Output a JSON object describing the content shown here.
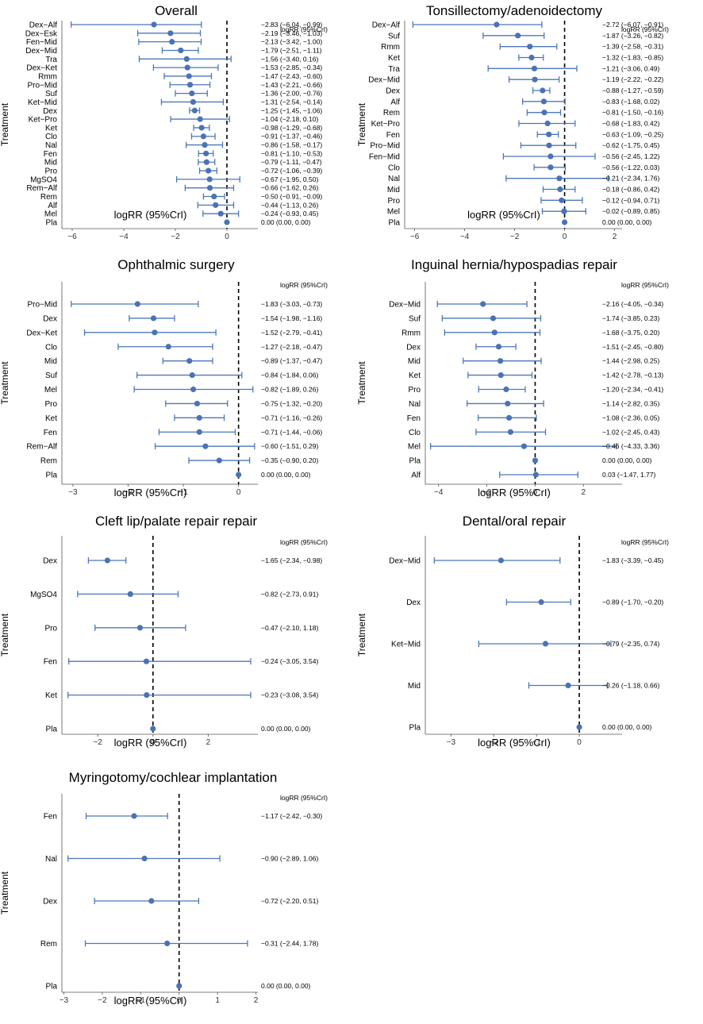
{
  "colors": {
    "interval": "#4c78b8",
    "point": "#4a73b5",
    "reference": "#000000"
  },
  "chart_data": [
    {
      "type": "forest",
      "title": "Overall",
      "xlabel": "logRR (95%CrI)",
      "ylabel": "Treatment",
      "est_header": "logRR (95%CrI)",
      "xlim": [
        -6.4,
        1.2
      ],
      "xticks": [
        -6,
        -4,
        -2,
        0
      ],
      "rows": [
        {
          "label": "Dex−Alf",
          "est": -2.83,
          "lo": -6.04,
          "hi": -0.99,
          "text": "−2.83 (−6.04, −0.99)"
        },
        {
          "label": "Dex−Esk",
          "est": -2.19,
          "lo": -3.46,
          "hi": -1.03,
          "text": "−2.19 (−3.46, −1.03)"
        },
        {
          "label": "Fen−Mid",
          "est": -2.13,
          "lo": -3.42,
          "hi": -1.0,
          "text": "−2.13 (−3.42, −1.00)"
        },
        {
          "label": "Dex−Mid",
          "est": -1.79,
          "lo": -2.51,
          "hi": -1.11,
          "text": "−1.79 (−2.51, −1.11)"
        },
        {
          "label": "Tra",
          "est": -1.56,
          "lo": -3.4,
          "hi": 0.16,
          "text": "−1.56 (−3.40, 0.16)"
        },
        {
          "label": "Dex−Ket",
          "est": -1.53,
          "lo": -2.85,
          "hi": -0.34,
          "text": "−1.53 (−2.85, −0.34)"
        },
        {
          "label": "Rmm",
          "est": -1.47,
          "lo": -2.43,
          "hi": -0.6,
          "text": "−1.47 (−2.43, −0.60)"
        },
        {
          "label": "Pro−Mid",
          "est": -1.43,
          "lo": -2.21,
          "hi": -0.66,
          "text": "−1.43 (−2.21, −0.66)"
        },
        {
          "label": "Suf",
          "est": -1.36,
          "lo": -2.0,
          "hi": -0.76,
          "text": "−1.36 (−2.00, −0.76)"
        },
        {
          "label": "Ket−Mid",
          "est": -1.31,
          "lo": -2.54,
          "hi": -0.14,
          "text": "−1.31 (−2.54, −0.14)"
        },
        {
          "label": "Dex",
          "est": -1.25,
          "lo": -1.45,
          "hi": -1.06,
          "text": "−1.25 (−1.45, −1.06)"
        },
        {
          "label": "Ket−Pro",
          "est": -1.04,
          "lo": -2.18,
          "hi": 0.1,
          "text": "−1.04 (−2.18, 0.10)"
        },
        {
          "label": "Ket",
          "est": -0.98,
          "lo": -1.29,
          "hi": -0.68,
          "text": "−0.98 (−1.29, −0.68)"
        },
        {
          "label": "Clo",
          "est": -0.91,
          "lo": -1.37,
          "hi": -0.46,
          "text": "−0.91 (−1.37, −0.46)"
        },
        {
          "label": "Nal",
          "est": -0.86,
          "lo": -1.58,
          "hi": -0.17,
          "text": "−0.86 (−1.58, −0.17)"
        },
        {
          "label": "Fen",
          "est": -0.81,
          "lo": -1.1,
          "hi": -0.53,
          "text": "−0.81 (−1.10, −0.53)"
        },
        {
          "label": "Mid",
          "est": -0.79,
          "lo": -1.11,
          "hi": -0.47,
          "text": "−0.79 (−1.11, −0.47)"
        },
        {
          "label": "Pro",
          "est": -0.72,
          "lo": -1.06,
          "hi": -0.39,
          "text": "−0.72 (−1.06, −0.39)"
        },
        {
          "label": "MgSO4",
          "est": -0.67,
          "lo": -1.95,
          "hi": 0.5,
          "text": "−0.67 (−1.95, 0.50)"
        },
        {
          "label": "Rem−Alf",
          "est": -0.66,
          "lo": -1.62,
          "hi": 0.26,
          "text": "−0.66 (−1.62, 0.26)"
        },
        {
          "label": "Rem",
          "est": -0.5,
          "lo": -0.91,
          "hi": -0.09,
          "text": "−0.50 (−0.91, −0.09)"
        },
        {
          "label": "Alf",
          "est": -0.44,
          "lo": -1.13,
          "hi": 0.26,
          "text": "−0.44 (−1.13, 0.26)"
        },
        {
          "label": "Mel",
          "est": -0.24,
          "lo": -0.93,
          "hi": 0.45,
          "text": "−0.24 (−0.93, 0.45)"
        },
        {
          "label": "Pla",
          "est": 0.0,
          "lo": 0.0,
          "hi": 0.0,
          "text": "0.00 (0.00, 0.00)"
        }
      ]
    },
    {
      "type": "forest",
      "title": "Tonsillectomy/adenoidectomy",
      "xlabel": "logRR (95%CrI)",
      "ylabel": "Treatment",
      "est_header": "logRR (95%CrI)",
      "xlim": [
        -6.4,
        2.3
      ],
      "xticks": [
        -6,
        -4,
        -2,
        0,
        2
      ],
      "rows": [
        {
          "label": "Dex−Alf",
          "est": -2.72,
          "lo": -6.07,
          "hi": -0.91,
          "text": "−2.72 (−6.07, −0.91)"
        },
        {
          "label": "Suf",
          "est": -1.87,
          "lo": -3.26,
          "hi": -0.82,
          "text": "−1.87 (−3.26, −0.82)"
        },
        {
          "label": "Rmm",
          "est": -1.39,
          "lo": -2.58,
          "hi": -0.31,
          "text": "−1.39 (−2.58, −0.31)"
        },
        {
          "label": "Ket",
          "est": -1.32,
          "lo": -1.83,
          "hi": -0.85,
          "text": "−1.32 (−1.83, −0.85)"
        },
        {
          "label": "Tra",
          "est": -1.21,
          "lo": -3.06,
          "hi": 0.49,
          "text": "−1.21 (−3.06, 0.49)"
        },
        {
          "label": "Dex−Mid",
          "est": -1.19,
          "lo": -2.22,
          "hi": -0.22,
          "text": "−1.19 (−2.22, −0.22)"
        },
        {
          "label": "Dex",
          "est": -0.88,
          "lo": -1.27,
          "hi": -0.59,
          "text": "−0.88 (−1.27, −0.59)"
        },
        {
          "label": "Alf",
          "est": -0.83,
          "lo": -1.68,
          "hi": 0.02,
          "text": "−0.83 (−1.68, 0.02)"
        },
        {
          "label": "Rem",
          "est": -0.81,
          "lo": -1.5,
          "hi": -0.16,
          "text": "−0.81 (−1.50, −0.16)"
        },
        {
          "label": "Ket−Pro",
          "est": -0.68,
          "lo": -1.83,
          "hi": 0.42,
          "text": "−0.68 (−1.83, 0.42)"
        },
        {
          "label": "Fen",
          "est": -0.63,
          "lo": -1.09,
          "hi": -0.25,
          "text": "−0.63 (−1.09, −0.25)"
        },
        {
          "label": "Pro−Mid",
          "est": -0.62,
          "lo": -1.75,
          "hi": 0.45,
          "text": "−0.62 (−1.75, 0.45)"
        },
        {
          "label": "Fen−Mid",
          "est": -0.56,
          "lo": -2.45,
          "hi": 1.22,
          "text": "−0.56 (−2.45, 1.22)"
        },
        {
          "label": "Clo",
          "est": -0.56,
          "lo": -1.22,
          "hi": 0.03,
          "text": "−0.56 (−1.22, 0.03)"
        },
        {
          "label": "Nal",
          "est": -0.21,
          "lo": -2.34,
          "hi": 1.76,
          "text": "−0.21 (−2.34, 1.76)"
        },
        {
          "label": "Mid",
          "est": -0.18,
          "lo": -0.86,
          "hi": 0.42,
          "text": "−0.18 (−0.86, 0.42)"
        },
        {
          "label": "Pro",
          "est": -0.12,
          "lo": -0.94,
          "hi": 0.71,
          "text": "−0.12 (−0.94, 0.71)"
        },
        {
          "label": "Mel",
          "est": -0.02,
          "lo": -0.89,
          "hi": 0.85,
          "text": "−0.02 (−0.89, 0.85)"
        },
        {
          "label": "Pla",
          "est": 0.0,
          "lo": 0.0,
          "hi": 0.0,
          "text": "0.00 (0.00, 0.00)"
        }
      ]
    },
    {
      "type": "forest",
      "title": "Ophthalmic surgery",
      "xlabel": "logRR (95%CrI)",
      "ylabel": "Treatment",
      "est_header": "logRR (95%CrI)",
      "xlim": [
        -3.2,
        0.35
      ],
      "xticks": [
        -3,
        -2,
        -1,
        0
      ],
      "rows": [
        {
          "label": "Pro−Mid",
          "est": -1.83,
          "lo": -3.03,
          "hi": -0.73,
          "text": "−1.83 (−3.03, −0.73)"
        },
        {
          "label": "Dex",
          "est": -1.54,
          "lo": -1.98,
          "hi": -1.16,
          "text": "−1.54 (−1.98, −1.16)"
        },
        {
          "label": "Dex−Ket",
          "est": -1.52,
          "lo": -2.79,
          "hi": -0.41,
          "text": "−1.52 (−2.79, −0.41)"
        },
        {
          "label": "Clo",
          "est": -1.27,
          "lo": -2.18,
          "hi": -0.47,
          "text": "−1.27 (−2.18, −0.47)"
        },
        {
          "label": "Mid",
          "est": -0.89,
          "lo": -1.37,
          "hi": -0.47,
          "text": "−0.89 (−1.37, −0.47)"
        },
        {
          "label": "Suf",
          "est": -0.84,
          "lo": -1.84,
          "hi": 0.06,
          "text": "−0.84 (−1.84, 0.06)"
        },
        {
          "label": "Mel",
          "est": -0.82,
          "lo": -1.89,
          "hi": 0.26,
          "text": "−0.82 (−1.89, 0.26)"
        },
        {
          "label": "Pro",
          "est": -0.75,
          "lo": -1.32,
          "hi": -0.2,
          "text": "−0.75 (−1.32, −0.20)"
        },
        {
          "label": "Ket",
          "est": -0.71,
          "lo": -1.16,
          "hi": -0.26,
          "text": "−0.71 (−1.16, −0.26)"
        },
        {
          "label": "Fen",
          "est": -0.71,
          "lo": -1.44,
          "hi": -0.06,
          "text": "−0.71 (−1.44, −0.06)"
        },
        {
          "label": "Rem−Alf",
          "est": -0.6,
          "lo": -1.51,
          "hi": 0.29,
          "text": "−0.60 (−1.51, 0.29)"
        },
        {
          "label": "Rem",
          "est": -0.35,
          "lo": -0.9,
          "hi": 0.2,
          "text": "−0.35 (−0.90, 0.20)"
        },
        {
          "label": "Pla",
          "est": 0.0,
          "lo": 0.0,
          "hi": 0.0,
          "text": "0.00 (0.00, 0.00)"
        }
      ]
    },
    {
      "type": "forest",
      "title": "Inguinal hernia/hypospadias repair",
      "xlabel": "logRR (95%CrI)",
      "ylabel": "Treatment",
      "est_header": "logRR (95%CrI)",
      "xlim": [
        -4.55,
        3.6
      ],
      "xticks": [
        -4,
        -2,
        0,
        2
      ],
      "rows": [
        {
          "label": "Dex−Mid",
          "est": -2.16,
          "lo": -4.05,
          "hi": -0.34,
          "text": "−2.16 (−4.05, −0.34)"
        },
        {
          "label": "Suf",
          "est": -1.74,
          "lo": -3.85,
          "hi": 0.23,
          "text": "−1.74 (−3.85, 0.23)"
        },
        {
          "label": "Rmm",
          "est": -1.68,
          "lo": -3.75,
          "hi": 0.2,
          "text": "−1.68 (−3.75, 0.20)"
        },
        {
          "label": "Dex",
          "est": -1.51,
          "lo": -2.45,
          "hi": -0.8,
          "text": "−1.51 (−2.45, −0.80)"
        },
        {
          "label": "Mid",
          "est": -1.44,
          "lo": -2.98,
          "hi": 0.25,
          "text": "−1.44 (−2.98, 0.25)"
        },
        {
          "label": "Ket",
          "est": -1.42,
          "lo": -2.78,
          "hi": -0.13,
          "text": "−1.42 (−2.78, −0.13)"
        },
        {
          "label": "Pro",
          "est": -1.2,
          "lo": -2.34,
          "hi": -0.41,
          "text": "−1.20 (−2.34, −0.41)"
        },
        {
          "label": "Nal",
          "est": -1.14,
          "lo": -2.82,
          "hi": 0.35,
          "text": "−1.14 (−2.82, 0.35)"
        },
        {
          "label": "Fen",
          "est": -1.08,
          "lo": -2.36,
          "hi": 0.05,
          "text": "−1.08 (−2.36, 0.05)"
        },
        {
          "label": "Clo",
          "est": -1.02,
          "lo": -2.45,
          "hi": 0.43,
          "text": "−1.02 (−2.45, 0.43)"
        },
        {
          "label": "Mel",
          "est": -0.46,
          "lo": -4.33,
          "hi": 3.36,
          "text": "−0.46 (−4.33, 3.36)"
        },
        {
          "label": "Pla",
          "est": 0.0,
          "lo": 0.0,
          "hi": 0.0,
          "text": "0.00 (0.00, 0.00)"
        },
        {
          "label": "Alf",
          "est": 0.03,
          "lo": -1.47,
          "hi": 1.77,
          "text": "0.03 (−1.47, 1.77)"
        }
      ]
    },
    {
      "type": "forest",
      "title": "Cleft lip/palate repair repair",
      "xlabel": "logRR (95%CrI)",
      "ylabel": "Treatment",
      "est_header": "logRR (95%CrI)",
      "xlim": [
        -3.3,
        3.8
      ],
      "xticks": [
        -2,
        0,
        2
      ],
      "rows": [
        {
          "label": "Dex",
          "est": -1.65,
          "lo": -2.34,
          "hi": -0.98,
          "text": "−1.65 (−2.34, −0.98)"
        },
        {
          "label": "MgSO4",
          "est": -0.82,
          "lo": -2.73,
          "hi": 0.91,
          "text": "−0.82 (−2.73, 0.91)"
        },
        {
          "label": "Pro",
          "est": -0.47,
          "lo": -2.1,
          "hi": 1.18,
          "text": "−0.47 (−2.10, 1.18)"
        },
        {
          "label": "Fen",
          "est": -0.24,
          "lo": -3.05,
          "hi": 3.54,
          "text": "−0.24 (−3.05, 3.54)"
        },
        {
          "label": "Ket",
          "est": -0.23,
          "lo": -3.08,
          "hi": 3.54,
          "text": "−0.23 (−3.08, 3.54)"
        },
        {
          "label": "Pla",
          "est": 0.0,
          "lo": 0.0,
          "hi": 0.0,
          "text": "0.00 (0.00, 0.00)"
        }
      ]
    },
    {
      "type": "forest",
      "title": "Dental/oral repair",
      "xlabel": "logRR (95%CrI)",
      "ylabel": "Treatment",
      "est_header": "logRR (95%CrI)",
      "xlim": [
        -3.6,
        1.0
      ],
      "xticks": [
        -3,
        -2,
        -1,
        0
      ],
      "rows": [
        {
          "label": "Dex−Mid",
          "est": -1.83,
          "lo": -3.39,
          "hi": -0.45,
          "text": "−1.83 (−3.39, −0.45)"
        },
        {
          "label": "Dex",
          "est": -0.89,
          "lo": -1.7,
          "hi": -0.2,
          "text": "−0.89 (−1.70, −0.20)"
        },
        {
          "label": "Ket−Mid",
          "est": -0.79,
          "lo": -2.35,
          "hi": 0.74,
          "text": "−0.79 (−2.35, 0.74)"
        },
        {
          "label": "Mid",
          "est": -0.26,
          "lo": -1.18,
          "hi": 0.66,
          "text": "−0.26 (−1.18, 0.66)"
        },
        {
          "label": "Pla",
          "est": 0.0,
          "lo": 0.0,
          "hi": 0.0,
          "text": "0.00 (0.00, 0.00)"
        }
      ]
    },
    {
      "type": "forest",
      "title": "Myringotomy/cochlear implantation",
      "xlabel": "logRR (95%CrI)",
      "ylabel": "Treatment",
      "est_header": "logRR (95%CrI)",
      "xlim": [
        -3.05,
        2.05
      ],
      "xticks": [
        -3,
        -2,
        -1,
        0,
        1,
        2
      ],
      "rows": [
        {
          "label": "Fen",
          "est": -1.17,
          "lo": -2.42,
          "hi": -0.3,
          "text": "−1.17 (−2.42, −0.30)"
        },
        {
          "label": "Nal",
          "est": -0.9,
          "lo": -2.89,
          "hi": 1.06,
          "text": "−0.90 (−2.89, 1.06)"
        },
        {
          "label": "Dex",
          "est": -0.72,
          "lo": -2.2,
          "hi": 0.51,
          "text": "−0.72 (−2.20, 0.51)"
        },
        {
          "label": "Rem",
          "est": -0.31,
          "lo": -2.44,
          "hi": 1.78,
          "text": "−0.31 (−2.44, 1.78)"
        },
        {
          "label": "Pla",
          "est": 0.0,
          "lo": 0.0,
          "hi": 0.0,
          "text": "0.00 (0.00, 0.00)"
        }
      ]
    }
  ]
}
